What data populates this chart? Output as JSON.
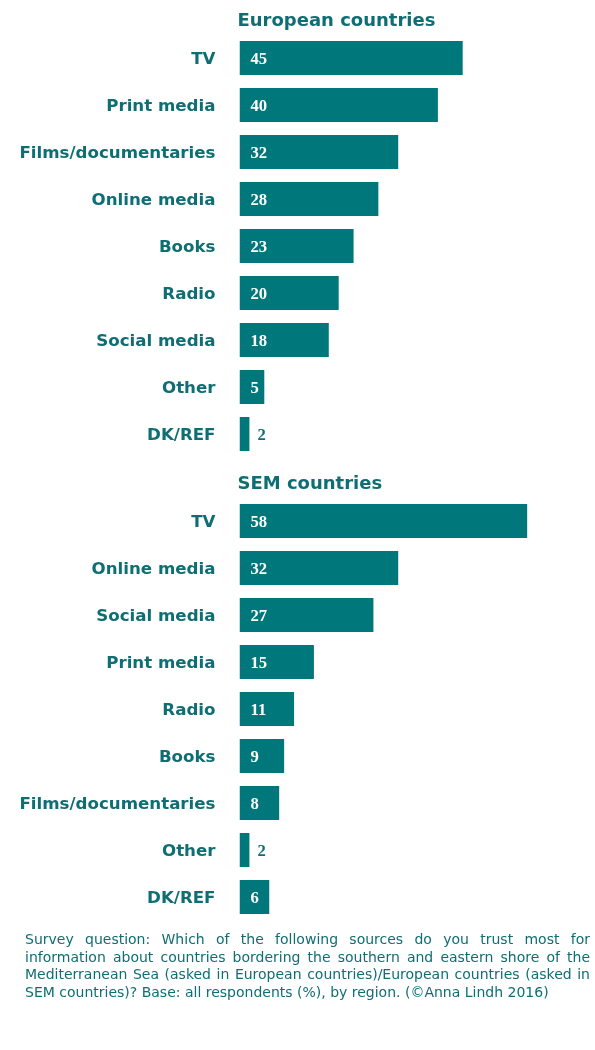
{
  "chart_data": [
    {
      "type": "bar",
      "orientation": "horizontal",
      "title": "European countries",
      "categories": [
        "TV",
        "Print media",
        "Films/documentaries",
        "Online media",
        "Books",
        "Radio",
        "Social media",
        "Other",
        "DK/REF"
      ],
      "values": [
        45,
        40,
        32,
        28,
        23,
        20,
        18,
        5,
        2
      ],
      "color": "#00777b",
      "data_labels": true
    },
    {
      "type": "bar",
      "orientation": "horizontal",
      "title": "SEM countries",
      "categories": [
        "TV",
        "Online media",
        "Social media",
        "Print media",
        "Radio",
        "Books",
        "Films/documentaries",
        "Other",
        "DK/REF"
      ],
      "values": [
        58,
        32,
        27,
        15,
        11,
        9,
        8,
        2,
        6
      ],
      "color": "#00777b",
      "data_labels": true,
      "annotations": [
        "Survey question: Which of the following sources do you trust most for information about countries bordering the southern and eastern shore of the Mediterranean Sea (asked in European countries)/European countries (asked in SEM countries)? Base: all respondents (%), by region. (©Anna Lindh 2016)"
      ]
    }
  ]
}
